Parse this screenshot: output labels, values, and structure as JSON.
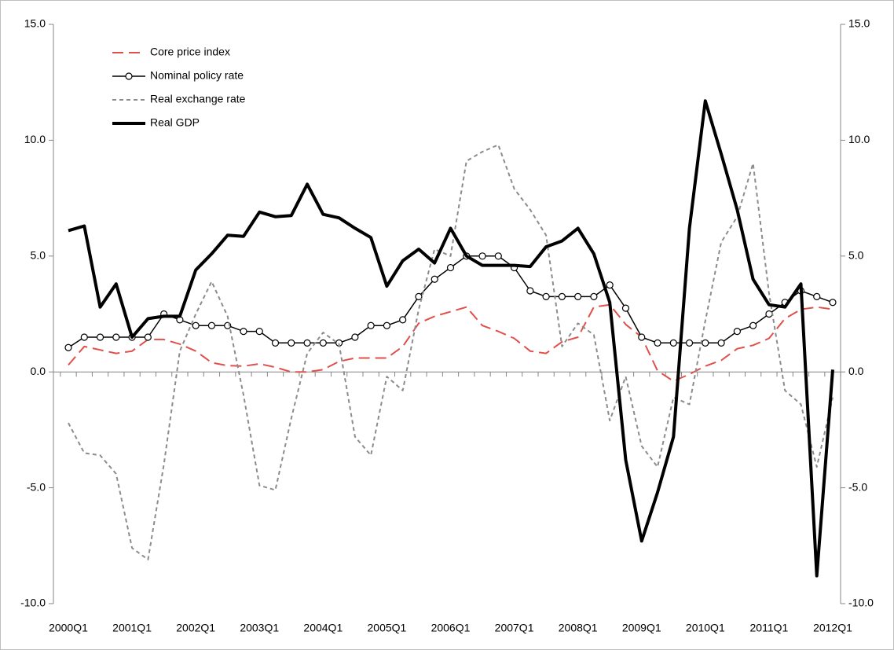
{
  "chart_data": {
    "type": "line",
    "categories": [
      "2000Q1",
      null,
      null,
      null,
      "2001Q1",
      null,
      null,
      null,
      "2002Q1",
      null,
      null,
      null,
      "2003Q1",
      null,
      null,
      null,
      "2004Q1",
      null,
      null,
      null,
      "2005Q1",
      null,
      null,
      null,
      "2006Q1",
      null,
      null,
      null,
      "2007Q1",
      null,
      null,
      null,
      "2008Q1",
      null,
      null,
      null,
      "2009Q1",
      null,
      null,
      null,
      "2010Q1",
      null,
      null,
      null,
      "2011Q1",
      null,
      null,
      null,
      "2012Q1"
    ],
    "series": [
      {
        "name": "Core price index",
        "color": "#e0504a",
        "linestyle": "dashed",
        "values": [
          0.3,
          1.1,
          0.95,
          0.8,
          0.9,
          1.4,
          1.4,
          1.2,
          0.9,
          0.4,
          0.27,
          0.25,
          0.35,
          0.2,
          0,
          0,
          0.1,
          0.45,
          0.6,
          0.6,
          0.6,
          1.1,
          2.1,
          2.4,
          2.6,
          2.8,
          2.0,
          1.75,
          1.45,
          0.9,
          0.8,
          1.3,
          1.5,
          2.8,
          2.9,
          2.05,
          1.5,
          0.05,
          -0.4,
          -0.1,
          0.25,
          0.5,
          1.0,
          1.15,
          1.45,
          2.3,
          2.7,
          2.8,
          2.7
        ]
      },
      {
        "name": "Nominal policy rate",
        "color": "#000000",
        "linestyle": "solid",
        "marker": "circle",
        "values": [
          1.05,
          1.5,
          1.5,
          1.5,
          1.5,
          1.5,
          2.5,
          2.25,
          2.0,
          2.0,
          2.0,
          1.75,
          1.75,
          1.25,
          1.25,
          1.25,
          1.25,
          1.25,
          1.5,
          2.0,
          2.0,
          2.25,
          3.25,
          4.0,
          4.5,
          5.0,
          5.0,
          5.0,
          4.5,
          3.5,
          3.25,
          3.25,
          3.25,
          3.25,
          3.75,
          2.75,
          1.5,
          1.25,
          1.25,
          1.25,
          1.25,
          1.25,
          1.75,
          2.0,
          2.5,
          3.0,
          3.5,
          3.25,
          3.0
        ]
      },
      {
        "name": "Real exchange rate",
        "color": "#8c8c8c",
        "linestyle": "dotted",
        "values": [
          -2.2,
          -3.5,
          -3.6,
          -4.4,
          -7.6,
          -8.1,
          -4.0,
          0.9,
          2.5,
          3.9,
          2.4,
          -1.0,
          -4.9,
          -5.1,
          -2.0,
          0.8,
          1.7,
          1.2,
          -2.8,
          -3.6,
          -0.2,
          -0.8,
          2.7,
          5.3,
          5.0,
          9.1,
          9.5,
          9.8,
          7.9,
          7.0,
          5.9,
          1.1,
          2.1,
          1.6,
          -2.1,
          -0.2,
          -3.2,
          -4.1,
          -1.1,
          -1.4,
          2.2,
          5.6,
          6.7,
          9.0,
          3.4,
          -0.8,
          -1.4,
          -4.1,
          -1.1
        ]
      },
      {
        "name": "Real GDP",
        "color": "#000000",
        "linestyle": "bold",
        "values": [
          6.1,
          6.3,
          2.8,
          3.8,
          1.5,
          2.3,
          2.4,
          2.4,
          4.4,
          5.1,
          5.9,
          5.85,
          6.9,
          6.7,
          6.75,
          8.1,
          6.8,
          6.65,
          6.2,
          5.8,
          3.7,
          4.8,
          5.3,
          4.7,
          6.2,
          5.0,
          4.6,
          4.6,
          4.6,
          4.55,
          5.4,
          5.65,
          6.2,
          5.1,
          3.0,
          -3.8,
          -7.3,
          -5.2,
          -2.8,
          6.2,
          11.7,
          9.4,
          7.0,
          4.0,
          2.9,
          2.8,
          3.8,
          -8.8,
          0.1
        ]
      }
    ],
    "ylim": [
      -10,
      15
    ],
    "yticks": [
      {
        "value": -10,
        "label": "-10.0"
      },
      {
        "value": -5,
        "label": "-5.0"
      },
      {
        "value": 0,
        "label": "0.0"
      },
      {
        "value": 5,
        "label": "5.0"
      },
      {
        "value": 10,
        "label": "10.0"
      },
      {
        "value": 15,
        "label": "15.0"
      }
    ],
    "y2lim": [
      -10,
      15
    ],
    "y2ticks": [
      {
        "value": -10,
        "label": "-10.0"
      },
      {
        "value": -5,
        "label": "-5.0"
      },
      {
        "value": 0,
        "label": "0.0"
      },
      {
        "value": 5,
        "label": "5.0"
      },
      {
        "value": 10,
        "label": "10.0"
      },
      {
        "value": 15,
        "label": "15.0"
      }
    ],
    "legend": "upper-left",
    "grid": false
  }
}
